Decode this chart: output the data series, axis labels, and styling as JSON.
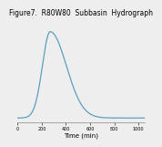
{
  "title": "Figure7.  R80W80  Subbasin  Hydrograph",
  "xlabel": "Time (min)",
  "xlabel_fontsize": 5,
  "title_fontsize": 5.5,
  "line_color": "#5b9fc0",
  "background_color": "#eeeeee",
  "xlim": [
    0,
    1050
  ],
  "ylim": [
    -0.05,
    1.15
  ],
  "xticks": [
    0,
    200,
    400,
    600,
    800,
    1000
  ],
  "peak_time": 270,
  "peak_value": 1.0,
  "rise_steepness": 0.00012,
  "fall_steepness": 2.8e-05
}
